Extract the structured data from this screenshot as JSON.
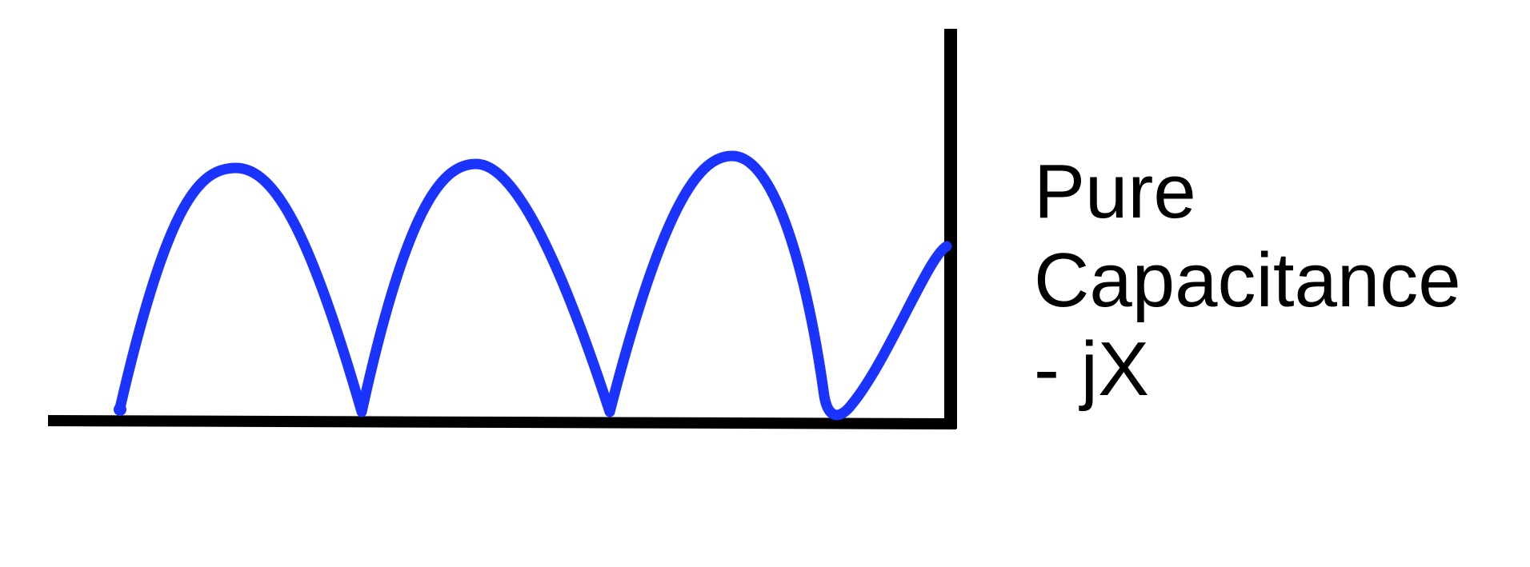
{
  "label": {
    "lines": [
      "Pure",
      "Capacitance",
      "- jX"
    ]
  },
  "colors": {
    "waveform": "#1a33ff",
    "axes": "#000000",
    "background": "#ffffff"
  }
}
